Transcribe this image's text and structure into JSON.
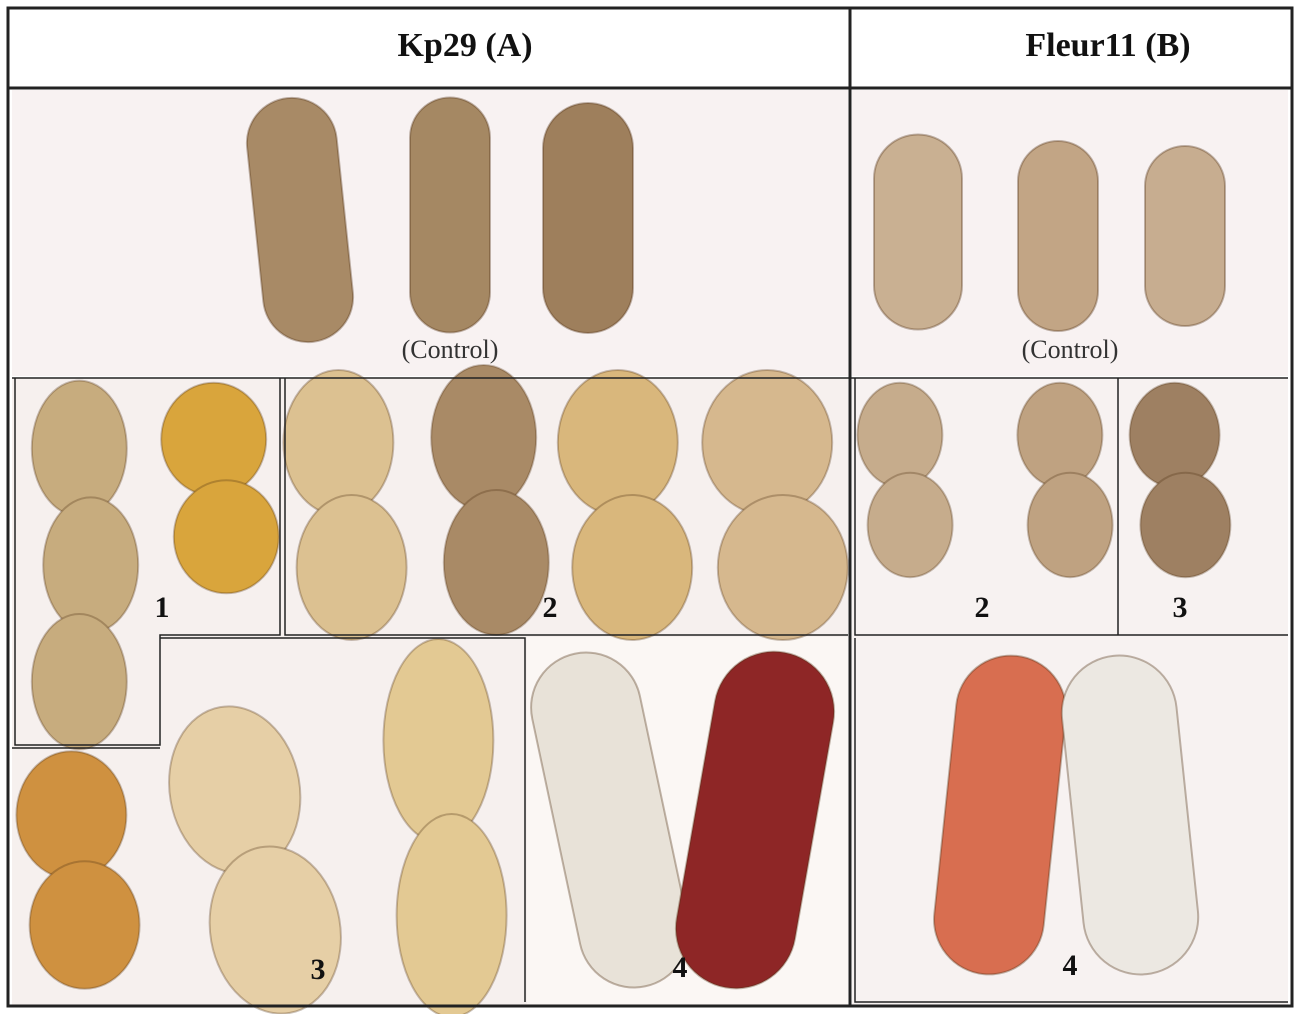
{
  "columns": [
    {
      "title": "Kp29 (A)",
      "control_label": "(Control)",
      "panel_labels": [
        "1",
        "2",
        "3",
        "4"
      ]
    },
    {
      "title": "Fleur11 (B)",
      "control_label": "(Control)",
      "panel_labels": [
        "2",
        "3",
        "4"
      ]
    }
  ]
}
